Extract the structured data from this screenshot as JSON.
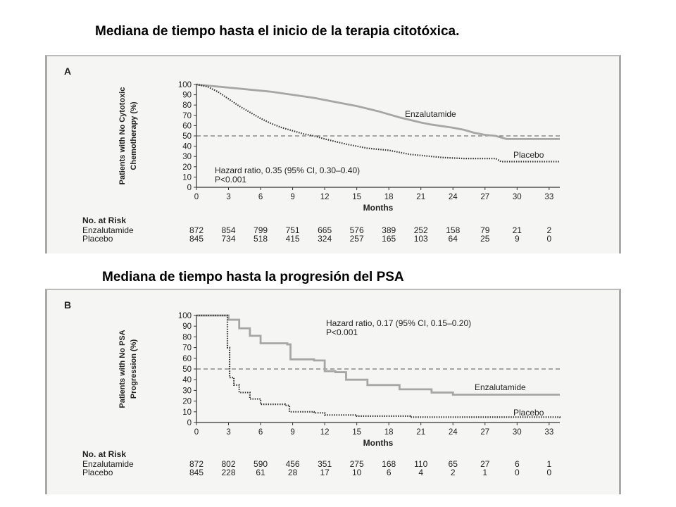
{
  "slide": {
    "title_a": "Mediana de tiempo hasta el inicio de la terapia citotóxica.",
    "title_b": "Mediana de tiempo hasta la progresión del PSA"
  },
  "chart_data": [
    {
      "type": "line",
      "panel_label": "A",
      "ylabel_line1": "Patients with No Cytotoxic",
      "ylabel_line2": "Chemotherapy (%)",
      "xlabel": "Months",
      "xlim": [
        0,
        34
      ],
      "ylim": [
        0,
        100
      ],
      "xticks": [
        "0",
        "3",
        "6",
        "9",
        "12",
        "15",
        "18",
        "21",
        "24",
        "27",
        "30",
        "33"
      ],
      "yticks": [
        "0",
        "10",
        "20",
        "30",
        "40",
        "50",
        "60",
        "70",
        "80",
        "90",
        "100"
      ],
      "reference_line": 50,
      "annotation_line1": "Hazard ratio, 0.35 (95% CI, 0.30–0.40)",
      "annotation_line2": "P<0.001",
      "series": [
        {
          "name": "Enzalutamide",
          "style": "solid",
          "color": "#a6a6a6",
          "x": [
            0,
            1,
            2,
            3,
            5,
            7,
            9,
            11,
            13,
            15,
            17,
            19,
            21,
            22,
            24,
            25,
            26,
            27,
            28,
            29,
            33,
            34
          ],
          "y": [
            100,
            99,
            98,
            97,
            95,
            93,
            90,
            87,
            83,
            79,
            74,
            68,
            63,
            61,
            58,
            56,
            53,
            51,
            50,
            47,
            47,
            47
          ]
        },
        {
          "name": "Placebo",
          "style": "dotted",
          "color": "#333333",
          "x": [
            0,
            1,
            2,
            3,
            4,
            5,
            6,
            7,
            8,
            9,
            10,
            11,
            12,
            14,
            16,
            18,
            20,
            21,
            23,
            25,
            27,
            28,
            28.5,
            34
          ],
          "y": [
            100,
            98,
            93,
            86,
            79,
            73,
            67,
            62,
            58,
            55,
            52,
            50,
            47,
            42,
            38,
            36,
            32,
            31,
            29,
            28,
            28,
            28,
            25,
            25
          ]
        }
      ],
      "risk_table": {
        "header": "No. at Risk",
        "rows": [
          {
            "label": "Enzalutamide",
            "values": [
              "872",
              "854",
              "799",
              "751",
              "665",
              "576",
              "389",
              "252",
              "158",
              "79",
              "21",
              "2"
            ]
          },
          {
            "label": "Placebo",
            "values": [
              "845",
              "734",
              "518",
              "415",
              "324",
              "257",
              "165",
              "103",
              "64",
              "25",
              "9",
              "0"
            ]
          }
        ]
      }
    },
    {
      "type": "line",
      "panel_label": "B",
      "ylabel_line1": "Patients with No PSA",
      "ylabel_line2": "Progression (%)",
      "xlabel": "Months",
      "xlim": [
        0,
        34
      ],
      "ylim": [
        0,
        100
      ],
      "xticks": [
        "0",
        "3",
        "6",
        "9",
        "12",
        "15",
        "18",
        "21",
        "24",
        "27",
        "30",
        "33"
      ],
      "yticks": [
        "0",
        "10",
        "20",
        "30",
        "40",
        "50",
        "60",
        "70",
        "80",
        "90",
        "100"
      ],
      "reference_line": 50,
      "annotation_line1": "Hazard ratio, 0.17 (95% CI, 0.15–0.20)",
      "annotation_line2": "P<0.001",
      "series": [
        {
          "name": "Enzalutamide",
          "style": "solid",
          "color": "#a6a6a6",
          "x": [
            0,
            2.7,
            3,
            4,
            5,
            6,
            8.5,
            8.8,
            11,
            12,
            13,
            14,
            16,
            19,
            22,
            24,
            27,
            34
          ],
          "y": [
            100,
            100,
            96,
            88,
            81,
            74,
            73,
            59,
            58,
            48,
            47,
            40,
            35,
            31,
            28,
            26,
            26,
            26
          ],
          "step": true
        },
        {
          "name": "Placebo",
          "style": "dotted",
          "color": "#333333",
          "x": [
            0,
            2.7,
            2.9,
            3.1,
            3.5,
            4,
            5,
            6,
            8.3,
            8.7,
            11,
            12,
            15,
            20,
            25,
            34
          ],
          "y": [
            100,
            100,
            70,
            42,
            35,
            28,
            22,
            17,
            16,
            10,
            9,
            7,
            6,
            5,
            5,
            4
          ],
          "step": true
        }
      ],
      "risk_table": {
        "header": "No. at Risk",
        "rows": [
          {
            "label": "Enzalutamide",
            "values": [
              "872",
              "802",
              "590",
              "456",
              "351",
              "275",
              "168",
              "110",
              "65",
              "27",
              "6",
              "1"
            ]
          },
          {
            "label": "Placebo",
            "values": [
              "845",
              "228",
              "61",
              "28",
              "17",
              "10",
              "6",
              "4",
              "2",
              "1",
              "0",
              "0"
            ]
          }
        ]
      }
    }
  ]
}
